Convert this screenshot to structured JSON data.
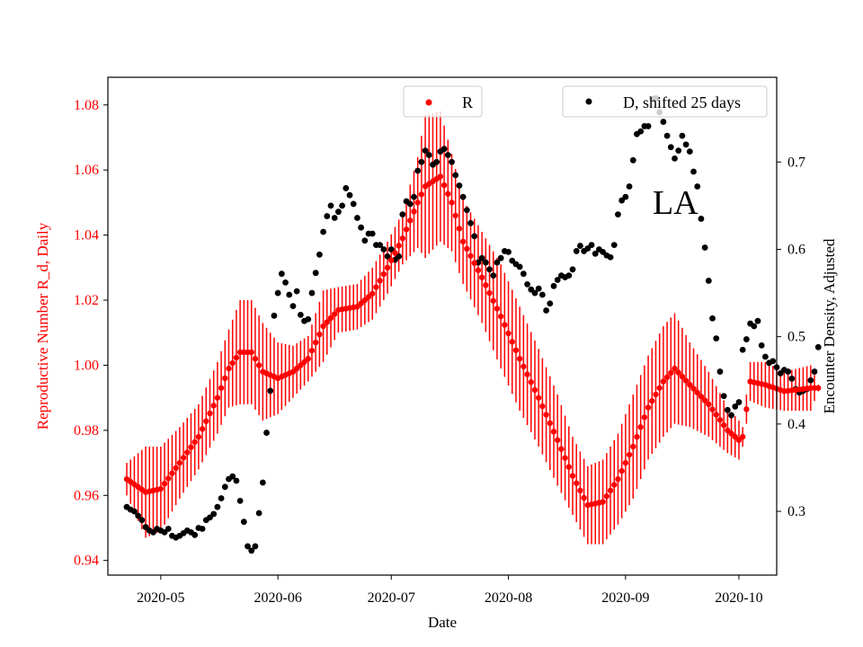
{
  "colors": {
    "r_series": "#ff0000",
    "d_series": "#000000",
    "axis": "#000000"
  },
  "chart_data": {
    "type": "scatter",
    "title": "",
    "annotation": "LA",
    "xlabel": "Date",
    "ylabel_left": "Reproductive Number R_d, Daily",
    "ylabel_right": "Encounter Density, Adjusted",
    "x_ticks": [
      "2020-05",
      "2020-06",
      "2020-07",
      "2020-08",
      "2020-09",
      "2020-10"
    ],
    "y_left_ticks": [
      "0.94",
      "0.96",
      "0.98",
      "1.00",
      "1.02",
      "1.04",
      "1.06",
      "1.08"
    ],
    "y_right_ticks": [
      "0.3",
      "0.4",
      "0.5",
      "0.6",
      "0.7"
    ],
    "xlim_days": [
      -14,
      163
    ],
    "ylim_left": [
      0.9355,
      1.0885
    ],
    "ylim_right": [
      0.227,
      0.797
    ],
    "legend": [
      {
        "label": "R",
        "location": "top-center"
      },
      {
        "label": "D, shifted 25 days",
        "location": "top-right"
      }
    ],
    "series": [
      {
        "name": "R",
        "axis": "left",
        "note": "daily R with error bars; x = days since 2020-05-01",
        "points": [
          [
            -9,
            0.965,
            0.005
          ],
          [
            -4,
            0.961,
            0.014
          ],
          [
            0,
            0.962,
            0.013
          ],
          [
            5,
            0.97,
            0.011
          ],
          [
            10,
            0.978,
            0.01
          ],
          [
            15,
            0.99,
            0.011
          ],
          [
            18,
            0.999,
            0.012
          ],
          [
            21,
            1.004,
            0.016
          ],
          [
            24,
            1.004,
            0.016
          ],
          [
            27,
            0.998,
            0.015
          ],
          [
            31,
            0.996,
            0.011
          ],
          [
            35,
            0.998,
            0.008
          ],
          [
            39,
            1.002,
            0.007
          ],
          [
            43,
            1.012,
            0.011
          ],
          [
            47,
            1.017,
            0.007
          ],
          [
            52,
            1.018,
            0.007
          ],
          [
            56,
            1.022,
            0.008
          ],
          [
            60,
            1.03,
            0.008
          ],
          [
            64,
            1.039,
            0.008
          ],
          [
            68,
            1.05,
            0.014
          ],
          [
            70,
            1.055,
            0.022
          ],
          [
            74,
            1.058,
            0.02
          ],
          [
            77,
            1.05,
            0.015
          ],
          [
            80,
            1.038,
            0.013
          ],
          [
            85,
            1.027,
            0.014
          ],
          [
            90,
            1.015,
            0.016
          ],
          [
            95,
            1.002,
            0.016
          ],
          [
            100,
            0.99,
            0.015
          ],
          [
            105,
            0.977,
            0.014
          ],
          [
            109,
            0.966,
            0.012
          ],
          [
            113,
            0.957,
            0.012
          ],
          [
            117,
            0.958,
            0.013
          ],
          [
            121,
            0.965,
            0.014
          ],
          [
            125,
            0.975,
            0.016
          ],
          [
            129,
            0.987,
            0.016
          ],
          [
            133,
            0.995,
            0.017
          ],
          [
            136,
            0.999,
            0.017
          ],
          [
            140,
            0.994,
            0.013
          ],
          [
            145,
            0.988,
            0.01
          ],
          [
            150,
            0.98,
            0.007
          ],
          [
            153,
            0.977,
            0.006
          ],
          [
            154,
            0.978,
            0.003
          ],
          [
            156,
            0.995,
            0.006
          ],
          [
            160,
            0.994,
            0.007
          ],
          [
            165,
            0.992,
            0.006
          ],
          [
            172,
            0.993,
            0.007
          ],
          [
            174,
            0.993,
            0.001
          ]
        ]
      },
      {
        "name": "D, shifted 25 days",
        "axis": "right",
        "note": "x = days since 2020-05-01, y = encounter density",
        "points": [
          [
            -9,
            0.305
          ],
          [
            -8,
            0.302
          ],
          [
            -7,
            0.3
          ],
          [
            -6,
            0.295
          ],
          [
            -5,
            0.29
          ],
          [
            -4,
            0.282
          ],
          [
            -3,
            0.278
          ],
          [
            -2,
            0.276
          ],
          [
            -1,
            0.28
          ],
          [
            0,
            0.278
          ],
          [
            1,
            0.276
          ],
          [
            2,
            0.28
          ],
          [
            3,
            0.272
          ],
          [
            4,
            0.27
          ],
          [
            5,
            0.272
          ],
          [
            6,
            0.275
          ],
          [
            7,
            0.278
          ],
          [
            8,
            0.276
          ],
          [
            9,
            0.273
          ],
          [
            10,
            0.281
          ],
          [
            11,
            0.28
          ],
          [
            12,
            0.29
          ],
          [
            13,
            0.293
          ],
          [
            14,
            0.297
          ],
          [
            15,
            0.305
          ],
          [
            16,
            0.315
          ],
          [
            17,
            0.328
          ],
          [
            18,
            0.337
          ],
          [
            19,
            0.34
          ],
          [
            20,
            0.335
          ],
          [
            21,
            0.312
          ],
          [
            22,
            0.288
          ],
          [
            23,
            0.26
          ],
          [
            24,
            0.255
          ],
          [
            25,
            0.26
          ],
          [
            26,
            0.298
          ],
          [
            27,
            0.333
          ],
          [
            28,
            0.39
          ],
          [
            29,
            0.438
          ],
          [
            30,
            0.524
          ],
          [
            31,
            0.55
          ],
          [
            32,
            0.572
          ],
          [
            33,
            0.562
          ],
          [
            34,
            0.548
          ],
          [
            35,
            0.535
          ],
          [
            36,
            0.552
          ],
          [
            37,
            0.525
          ],
          [
            38,
            0.518
          ],
          [
            39,
            0.52
          ],
          [
            40,
            0.55
          ],
          [
            41,
            0.573
          ],
          [
            42,
            0.594
          ],
          [
            43,
            0.62
          ],
          [
            44,
            0.638
          ],
          [
            45,
            0.65
          ],
          [
            46,
            0.636
          ],
          [
            47,
            0.643
          ],
          [
            48,
            0.65
          ],
          [
            49,
            0.67
          ],
          [
            50,
            0.662
          ],
          [
            51,
            0.652
          ],
          [
            52,
            0.636
          ],
          [
            53,
            0.625
          ],
          [
            54,
            0.61
          ],
          [
            55,
            0.618
          ],
          [
            56,
            0.618
          ],
          [
            57,
            0.605
          ],
          [
            58,
            0.605
          ],
          [
            59,
            0.6
          ],
          [
            60,
            0.592
          ],
          [
            61,
            0.6
          ],
          [
            62,
            0.588
          ],
          [
            63,
            0.592
          ],
          [
            64,
            0.64
          ],
          [
            65,
            0.655
          ],
          [
            66,
            0.652
          ],
          [
            67,
            0.66
          ],
          [
            68,
            0.69
          ],
          [
            69,
            0.7
          ],
          [
            70,
            0.713
          ],
          [
            71,
            0.708
          ],
          [
            72,
            0.697
          ],
          [
            73,
            0.7
          ],
          [
            74,
            0.712
          ],
          [
            75,
            0.715
          ],
          [
            76,
            0.708
          ],
          [
            77,
            0.7
          ],
          [
            78,
            0.685
          ],
          [
            79,
            0.673
          ],
          [
            80,
            0.66
          ],
          [
            81,
            0.645
          ],
          [
            82,
            0.63
          ],
          [
            83,
            0.615
          ],
          [
            84,
            0.585
          ],
          [
            85,
            0.59
          ],
          [
            86,
            0.585
          ],
          [
            87,
            0.577
          ],
          [
            88,
            0.57
          ],
          [
            89,
            0.585
          ],
          [
            90,
            0.59
          ],
          [
            91,
            0.598
          ],
          [
            92,
            0.597
          ],
          [
            93,
            0.587
          ],
          [
            94,
            0.583
          ],
          [
            95,
            0.58
          ],
          [
            96,
            0.572
          ],
          [
            97,
            0.56
          ],
          [
            98,
            0.554
          ],
          [
            99,
            0.55
          ],
          [
            100,
            0.555
          ],
          [
            101,
            0.548
          ],
          [
            102,
            0.53
          ],
          [
            103,
            0.538
          ],
          [
            104,
            0.558
          ],
          [
            105,
            0.565
          ],
          [
            106,
            0.57
          ],
          [
            107,
            0.568
          ],
          [
            108,
            0.57
          ],
          [
            109,
            0.577
          ],
          [
            110,
            0.598
          ],
          [
            111,
            0.604
          ],
          [
            112,
            0.598
          ],
          [
            113,
            0.601
          ],
          [
            114,
            0.605
          ],
          [
            115,
            0.595
          ],
          [
            116,
            0.6
          ],
          [
            117,
            0.597
          ],
          [
            118,
            0.593
          ],
          [
            119,
            0.591
          ],
          [
            120,
            0.605
          ],
          [
            121,
            0.64
          ],
          [
            122,
            0.656
          ],
          [
            123,
            0.66
          ],
          [
            124,
            0.672
          ],
          [
            125,
            0.702
          ],
          [
            126,
            0.732
          ],
          [
            127,
            0.735
          ],
          [
            128,
            0.741
          ],
          [
            129,
            0.741
          ],
          [
            130,
            0.772
          ],
          [
            131,
            0.773
          ],
          [
            132,
            0.757
          ],
          [
            133,
            0.746
          ],
          [
            134,
            0.73
          ],
          [
            135,
            0.717
          ],
          [
            136,
            0.704
          ],
          [
            137,
            0.713
          ],
          [
            138,
            0.73
          ],
          [
            139,
            0.72
          ],
          [
            140,
            0.712
          ],
          [
            141,
            0.689
          ],
          [
            142,
            0.672
          ],
          [
            143,
            0.635
          ],
          [
            144,
            0.602
          ],
          [
            145,
            0.564
          ],
          [
            146,
            0.521
          ],
          [
            147,
            0.498
          ],
          [
            148,
            0.46
          ],
          [
            149,
            0.432
          ],
          [
            150,
            0.416
          ],
          [
            151,
            0.41
          ],
          [
            152,
            0.42
          ],
          [
            153,
            0.425
          ],
          [
            154,
            0.485
          ],
          [
            155,
            0.497
          ],
          [
            156,
            0.515
          ],
          [
            157,
            0.512
          ],
          [
            158,
            0.518
          ],
          [
            159,
            0.49
          ],
          [
            160,
            0.477
          ],
          [
            161,
            0.47
          ],
          [
            162,
            0.472
          ],
          [
            163,
            0.465
          ],
          [
            164,
            0.458
          ],
          [
            165,
            0.462
          ],
          [
            166,
            0.46
          ],
          [
            167,
            0.452
          ],
          [
            168,
            0.44
          ],
          [
            169,
            0.436
          ],
          [
            170,
            0.438
          ],
          [
            171,
            0.44
          ],
          [
            172,
            0.45
          ],
          [
            173,
            0.46
          ],
          [
            174,
            0.488
          ]
        ]
      }
    ]
  }
}
